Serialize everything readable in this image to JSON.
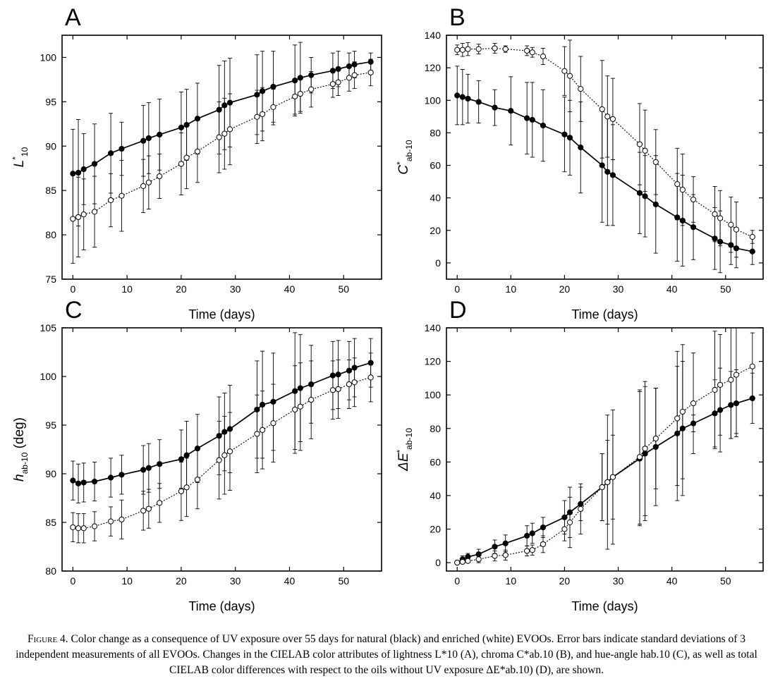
{
  "caption": {
    "label": "Figure 4.",
    "text": "Color change as a consequence of UV exposure over 55 days for natural (black) and enriched (white) EVOOs. Error bars indicate standard deviations of 3 independent measurements of all EVOOs. Changes in the CIELAB color attributes of lightness L*10 (A), chroma C*ab.10 (B), and hue-angle hab.10 (C), as well as total CIELAB color differences with respect to the oils without UV exposure ΔE*ab.10) (D), are shown."
  },
  "chart_data": [
    {
      "type": "line",
      "panel": "A",
      "xlabel": "Time (days)",
      "ylabel_main": "L",
      "ylabel_sup": "*",
      "ylabel_sub": "10",
      "xlim": [
        -2,
        57
      ],
      "ylim": [
        75,
        102.5
      ],
      "xticks": [
        0,
        10,
        20,
        30,
        40,
        50
      ],
      "yticks": [
        75,
        80,
        85,
        90,
        95,
        100
      ],
      "series": [
        {
          "style": "filled",
          "x": [
            0,
            1,
            2,
            4,
            7,
            9,
            13,
            14,
            16,
            20,
            21,
            23,
            27,
            28,
            29,
            34,
            35,
            37,
            41,
            42,
            44,
            48,
            49,
            51,
            52,
            55
          ],
          "y": [
            86.9,
            87.0,
            87.4,
            88.0,
            89.2,
            89.7,
            90.6,
            90.9,
            91.3,
            92.1,
            92.4,
            93.1,
            94.1,
            94.6,
            94.9,
            95.8,
            96.2,
            96.7,
            97.4,
            97.7,
            98.0,
            98.5,
            98.7,
            99.0,
            99.2,
            99.5
          ],
          "err": [
            5,
            6,
            4,
            4.5,
            4.5,
            3,
            4,
            4,
            4,
            4,
            4,
            4,
            5,
            5,
            5,
            4.5,
            4.5,
            4,
            4,
            4,
            2,
            2,
            2,
            1.5,
            1.5,
            1
          ]
        },
        {
          "style": "open",
          "x": [
            0,
            1,
            2,
            4,
            7,
            9,
            13,
            14,
            16,
            20,
            21,
            23,
            27,
            28,
            29,
            34,
            35,
            37,
            41,
            42,
            44,
            48,
            49,
            51,
            52,
            55
          ],
          "y": [
            81.8,
            82.0,
            82.3,
            82.6,
            83.9,
            84.4,
            85.5,
            85.9,
            86.6,
            88.0,
            88.7,
            89.4,
            91.0,
            91.4,
            91.9,
            93.3,
            93.6,
            94.4,
            95.6,
            95.9,
            96.4,
            97.0,
            97.2,
            97.7,
            98.0,
            98.3
          ],
          "err": [
            5,
            4.5,
            4,
            4,
            3,
            4,
            3,
            3,
            2.5,
            3.5,
            3.5,
            3.5,
            4,
            4,
            4,
            3,
            3,
            2,
            2,
            2,
            2,
            1.5,
            1.5,
            1.5,
            1.5,
            1.5
          ]
        }
      ]
    },
    {
      "type": "line",
      "panel": "B",
      "xlabel": "Time (days)",
      "ylabel_main": "C",
      "ylabel_sup": "*",
      "ylabel_sub": "ab-10",
      "xlim": [
        -2,
        57
      ],
      "ylim": [
        -10,
        140
      ],
      "xticks": [
        0,
        10,
        20,
        30,
        40,
        50
      ],
      "yticks": [
        0,
        20,
        40,
        60,
        80,
        100,
        120,
        140
      ],
      "series": [
        {
          "style": "filled",
          "x": [
            0,
            1,
            2,
            4,
            7,
            10,
            13,
            14,
            16,
            20,
            21,
            23,
            27,
            28,
            29,
            34,
            35,
            37,
            41,
            42,
            44,
            48,
            49,
            51,
            52,
            55
          ],
          "y": [
            103,
            102,
            101,
            99,
            95.5,
            93.5,
            89,
            88,
            84.5,
            79,
            77,
            71,
            60,
            56,
            54,
            43,
            41,
            36,
            28,
            26,
            22,
            15,
            13,
            11,
            9,
            7
          ],
          "err": [
            18,
            17,
            15,
            13,
            11,
            21,
            22,
            23,
            22,
            23,
            23,
            28,
            35,
            33,
            31,
            25,
            25,
            30,
            27,
            28,
            20,
            19,
            19,
            12,
            12,
            8
          ]
        },
        {
          "style": "open",
          "x": [
            0,
            1,
            2,
            4,
            7,
            9,
            13,
            14,
            16,
            20,
            21,
            23,
            27,
            28,
            29,
            34,
            35,
            37,
            41,
            42,
            44,
            48,
            49,
            51,
            52,
            55
          ],
          "y": [
            131,
            131,
            131.5,
            131.5,
            132,
            131.5,
            130.5,
            129.5,
            127,
            118,
            115,
            107,
            94.5,
            90,
            88.5,
            73,
            69,
            62,
            48.5,
            45,
            39,
            30,
            27.5,
            23.5,
            20.5,
            16
          ],
          "err": [
            3,
            4,
            4,
            3,
            3,
            2,
            3,
            3,
            5,
            15,
            22,
            20,
            30,
            25,
            25,
            25,
            25,
            20,
            22,
            22,
            14,
            17,
            17,
            17,
            17,
            4
          ]
        }
      ]
    },
    {
      "type": "line",
      "panel": "C",
      "xlabel": "Time (days)",
      "ylabel_main": "h",
      "ylabel_sup": "",
      "ylabel_sub": "ab-10",
      "ylabel_suffix": " (deg)",
      "xlim": [
        -2,
        57
      ],
      "ylim": [
        80,
        105
      ],
      "xticks": [
        0,
        10,
        20,
        30,
        40,
        50
      ],
      "yticks": [
        80,
        85,
        90,
        95,
        100,
        105
      ],
      "series": [
        {
          "style": "filled",
          "x": [
            0,
            1,
            2,
            4,
            7,
            9,
            13,
            14,
            16,
            20,
            21,
            23,
            27,
            28,
            29,
            34,
            35,
            37,
            41,
            42,
            44,
            48,
            49,
            51,
            52,
            55
          ],
          "y": [
            89.3,
            89.0,
            89.1,
            89.2,
            89.6,
            89.9,
            90.4,
            90.6,
            91.0,
            91.5,
            91.9,
            92.6,
            93.9,
            94.3,
            94.6,
            96.6,
            97.1,
            97.4,
            98.5,
            98.8,
            99.2,
            100.1,
            100.2,
            100.6,
            100.9,
            101.4
          ],
          "err": [
            2,
            2,
            2,
            2,
            2,
            2,
            2.5,
            2.5,
            2.5,
            3,
            3.5,
            3.5,
            4,
            4,
            4.5,
            5,
            5.5,
            5,
            6,
            5.5,
            4,
            3.5,
            3.5,
            3,
            3,
            2.5
          ]
        },
        {
          "style": "open",
          "x": [
            0,
            1,
            2,
            4,
            7,
            9,
            13,
            14,
            16,
            20,
            21,
            23,
            27,
            28,
            29,
            34,
            35,
            37,
            41,
            42,
            44,
            48,
            49,
            51,
            52,
            55
          ],
          "y": [
            84.5,
            84.4,
            84.4,
            84.6,
            85.1,
            85.3,
            86.2,
            86.4,
            87.0,
            88.2,
            88.6,
            89.4,
            91.4,
            91.9,
            92.3,
            94.1,
            94.5,
            95.2,
            96.6,
            96.9,
            97.6,
            98.6,
            98.7,
            99.2,
            99.4,
            99.9
          ],
          "err": [
            1.5,
            1.5,
            1.5,
            1.5,
            1.5,
            2,
            2,
            2,
            2,
            3,
            3,
            3,
            4,
            4,
            4,
            4,
            4,
            4,
            4.5,
            4.5,
            4,
            3,
            3,
            2.5,
            2.5,
            2.5
          ]
        }
      ]
    },
    {
      "type": "line",
      "panel": "D",
      "xlabel": "Time (days)",
      "ylabel_main": "ΔE",
      "ylabel_sup": "*",
      "ylabel_sub": "ab-10",
      "xlim": [
        -2,
        57
      ],
      "ylim": [
        -5,
        140
      ],
      "xticks": [
        0,
        10,
        20,
        30,
        40,
        50
      ],
      "yticks": [
        0,
        20,
        40,
        60,
        80,
        100,
        120,
        140
      ],
      "series": [
        {
          "style": "filled",
          "x": [
            0,
            1,
            2,
            4,
            7,
            9,
            13,
            14,
            16,
            20,
            21,
            23,
            27,
            28,
            29,
            34,
            35,
            37,
            41,
            42,
            44,
            48,
            49,
            51,
            52,
            55
          ],
          "y": [
            0,
            2,
            3.5,
            5,
            9.5,
            11.5,
            16,
            17.5,
            21,
            27,
            30,
            35,
            45,
            48,
            51,
            62,
            65,
            69,
            77,
            80,
            83,
            89,
            91,
            94,
            95,
            98
          ],
          "err": [
            1,
            2,
            2,
            3,
            4,
            5,
            6,
            6,
            6,
            10,
            15,
            10,
            20,
            40,
            40,
            40,
            40,
            35,
            40,
            40,
            5,
            20,
            25,
            20,
            20,
            15
          ]
        },
        {
          "style": "open",
          "x": [
            0,
            1,
            2,
            4,
            7,
            9,
            13,
            14,
            16,
            20,
            21,
            23,
            27,
            28,
            29,
            34,
            35,
            37,
            41,
            42,
            44,
            48,
            49,
            51,
            52,
            55
          ],
          "y": [
            0,
            0.5,
            1,
            2,
            4,
            4.5,
            7,
            7.5,
            11,
            20,
            24,
            32,
            45,
            48,
            51,
            63,
            68,
            74,
            86,
            90,
            95,
            103,
            106,
            109,
            112,
            117
          ],
          "err": [
            1,
            1,
            1,
            2,
            3,
            3,
            3,
            3,
            5,
            7,
            15,
            15,
            20,
            25,
            25,
            40,
            40,
            30,
            40,
            40,
            30,
            35,
            30,
            35,
            35,
            20
          ]
        }
      ]
    }
  ]
}
